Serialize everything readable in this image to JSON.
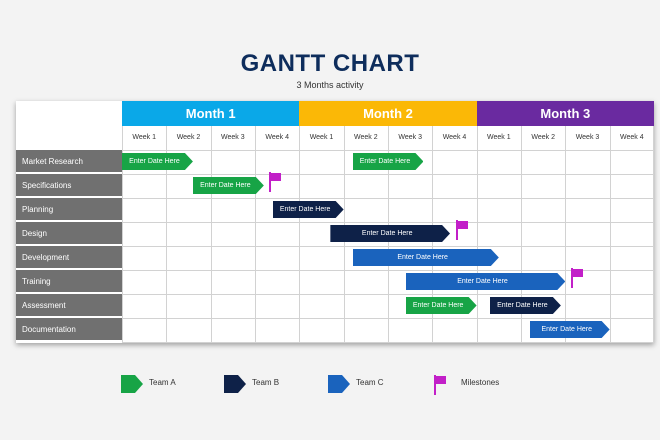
{
  "header": {
    "title": "GANTT CHART",
    "subtitle": "3 Months activity"
  },
  "colors": {
    "month_1": "#0aa8e8",
    "month_2": "#fbb806",
    "month_3": "#6a2aa0",
    "team_a": "#17a446",
    "team_b": "#0e2148",
    "team_c": "#1a63bd",
    "milestone": "#c21fc8"
  },
  "months": [
    {
      "label": "Month 1",
      "weeks": [
        "Week 1",
        "Week 2",
        "Week 3",
        "Week 4"
      ]
    },
    {
      "label": "Month 2",
      "weeks": [
        "Week 1",
        "Week 2",
        "Week 3",
        "Week 4"
      ]
    },
    {
      "label": "Month 3",
      "weeks": [
        "Week 1",
        "Week 2",
        "Week 3",
        "Week 4"
      ]
    }
  ],
  "tasks": [
    {
      "name": "Market Research",
      "bars": [
        {
          "team": "A",
          "start": 1,
          "end": 2.6,
          "label": "Enter Date Here"
        },
        {
          "team": "A",
          "start": 6.2,
          "end": 7.8,
          "label": "Enter Date Here"
        }
      ],
      "milestones": []
    },
    {
      "name": "Specifications",
      "bars": [
        {
          "team": "A",
          "start": 2.6,
          "end": 4.2,
          "label": "Enter Date Here"
        }
      ],
      "milestones": [
        4.3
      ]
    },
    {
      "name": "Planning",
      "bars": [
        {
          "team": "B",
          "start": 4.4,
          "end": 6.0,
          "label": "Enter Date Here"
        }
      ],
      "milestones": []
    },
    {
      "name": "Design",
      "bars": [
        {
          "team": "B",
          "start": 5.7,
          "end": 8.4,
          "label": "Enter Date Here"
        }
      ],
      "milestones": [
        8.5
      ]
    },
    {
      "name": "Development",
      "bars": [
        {
          "team": "C",
          "start": 6.2,
          "end": 9.5,
          "label": "Enter Date Here"
        }
      ],
      "milestones": []
    },
    {
      "name": "Training",
      "bars": [
        {
          "team": "C",
          "start": 7.4,
          "end": 11.0,
          "label": "Enter Date Here"
        }
      ],
      "milestones": [
        11.1
      ]
    },
    {
      "name": "Assessment",
      "bars": [
        {
          "team": "A",
          "start": 7.4,
          "end": 9.0,
          "label": "Enter Date Here"
        },
        {
          "team": "B",
          "start": 9.3,
          "end": 10.9,
          "label": "Enter Date Here"
        }
      ],
      "milestones": []
    },
    {
      "name": "Documentation",
      "bars": [
        {
          "team": "C",
          "start": 10.2,
          "end": 12.0,
          "label": "Enter Date Here"
        }
      ],
      "milestones": []
    }
  ],
  "legend": [
    {
      "key": "A",
      "label": "Team A",
      "icon": "team-a-arrow-icon"
    },
    {
      "key": "B",
      "label": "Team B",
      "icon": "team-b-arrow-icon"
    },
    {
      "key": "C",
      "label": "Team C",
      "icon": "team-c-arrow-icon"
    },
    {
      "key": "M",
      "label": "Milestones",
      "icon": "milestone-flag-icon"
    }
  ]
}
